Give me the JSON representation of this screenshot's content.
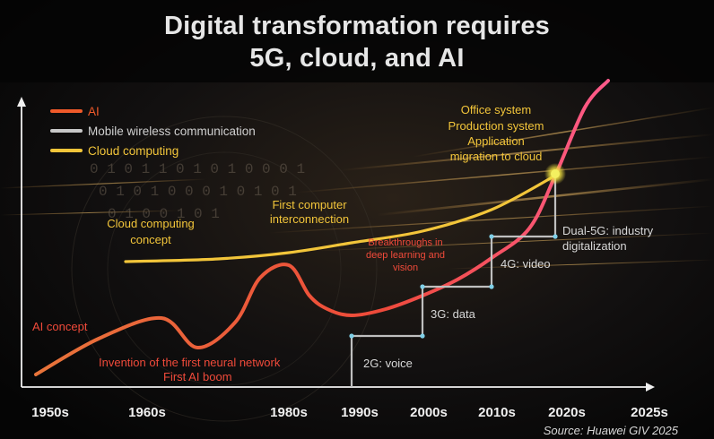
{
  "title_line1": "Digital transformation requires",
  "title_line2": "5G, cloud, and AI",
  "source": "Source: Huawei GIV 2025",
  "legend": [
    {
      "label": "AI",
      "color": "#f05a2a"
    },
    {
      "label": "Mobile wireless communication",
      "color": "#c8c8c8"
    },
    {
      "label": "Cloud computing",
      "color": "#f2c53a"
    }
  ],
  "chart_data": {
    "type": "line",
    "x_ticks": [
      "1950s",
      "1960s",
      "1980s",
      "1990s",
      "2000s",
      "2010s",
      "2020s",
      "2025s"
    ],
    "xlim": [
      1950,
      2025
    ],
    "series": [
      {
        "name": "AI",
        "style": "curve",
        "points": [
          [
            1950,
            8
          ],
          [
            1956,
            22
          ],
          [
            1961,
            24
          ],
          [
            1964,
            14
          ],
          [
            1970,
            30
          ],
          [
            1975,
            48
          ],
          [
            1980,
            60
          ],
          [
            1984,
            48
          ],
          [
            1986,
            30
          ],
          [
            1990,
            28
          ],
          [
            1995,
            32
          ],
          [
            2000,
            40
          ],
          [
            2005,
            52
          ],
          [
            2010,
            68
          ],
          [
            2015,
            84
          ],
          [
            2019,
            100
          ],
          [
            2022,
            150
          ],
          [
            2024,
            200
          ]
        ]
      },
      {
        "name": "Mobile wireless communication",
        "style": "steps",
        "points": [
          [
            1990,
            0
          ],
          [
            1990,
            22
          ],
          [
            2000,
            22
          ],
          [
            2000,
            45
          ],
          [
            2010,
            45
          ],
          [
            2010,
            67
          ],
          [
            2019,
            67
          ],
          [
            2019,
            100
          ]
        ]
      },
      {
        "name": "Cloud computing",
        "style": "curve",
        "points": [
          [
            1960,
            60
          ],
          [
            1970,
            62
          ],
          [
            1980,
            66
          ],
          [
            1990,
            72
          ],
          [
            2000,
            78
          ],
          [
            2010,
            88
          ],
          [
            2019,
            100
          ]
        ]
      }
    ],
    "annotations": [
      {
        "text": "AI concept",
        "series": "AI"
      },
      {
        "text": "Invention of the first neural network",
        "series": "AI"
      },
      {
        "text": "First AI boom",
        "series": "AI"
      },
      {
        "text": "Breakthroughs in",
        "series": "AI"
      },
      {
        "text": "deep learning and",
        "series": "AI"
      },
      {
        "text": "vision",
        "series": "AI"
      },
      {
        "text": "2G: voice",
        "series": "Mobile wireless communication"
      },
      {
        "text": "3G: data",
        "series": "Mobile wireless communication"
      },
      {
        "text": "4G: video",
        "series": "Mobile wireless communication"
      },
      {
        "text": "Dual-5G: industry",
        "series": "Mobile wireless communication"
      },
      {
        "text": "digitalization",
        "series": "Mobile wireless communication"
      },
      {
        "text": "Cloud computing",
        "series": "Cloud computing"
      },
      {
        "text": "concept",
        "series": "Cloud computing"
      },
      {
        "text": "First computer",
        "series": "Cloud computing"
      },
      {
        "text": "interconnection",
        "series": "Cloud computing"
      },
      {
        "text": "Office system",
        "series": "Cloud computing"
      },
      {
        "text": "Production system",
        "series": "Cloud computing"
      },
      {
        "text": "Application",
        "series": "Cloud computing"
      },
      {
        "text": "migration to cloud",
        "series": "Cloud computing"
      }
    ],
    "grid": false,
    "legend_position": "top-left"
  }
}
